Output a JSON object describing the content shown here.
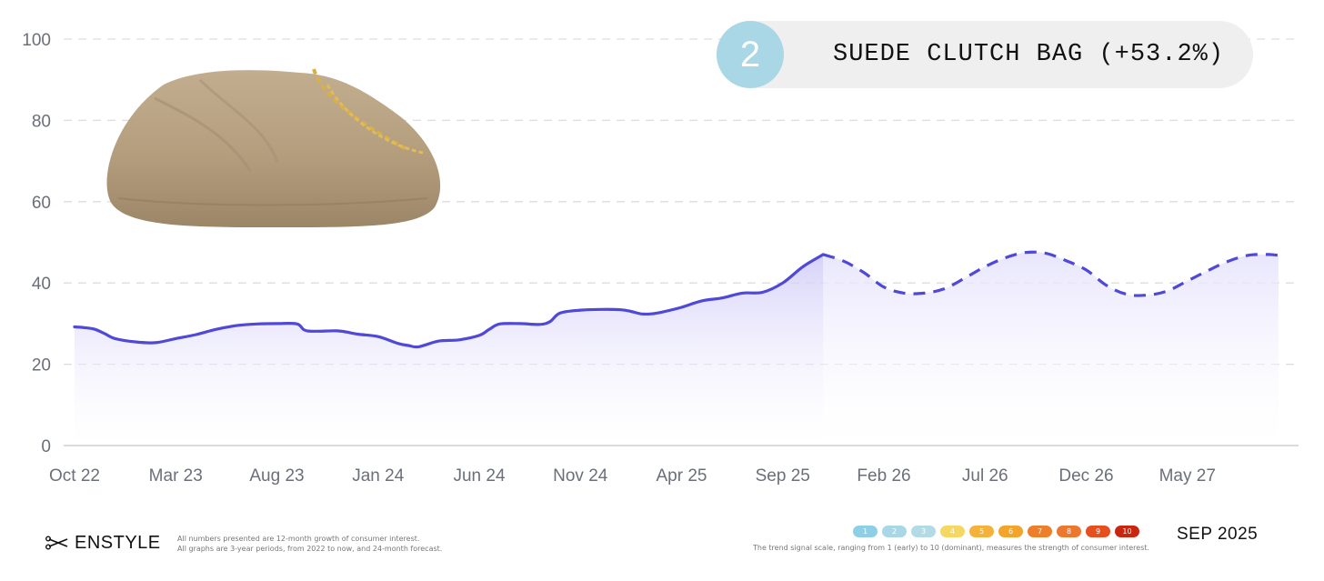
{
  "badge": {
    "rank": "2",
    "title": "SUEDE CLUTCH BAG (+53.2%)"
  },
  "brand": {
    "name": "ENSTYLE",
    "icon": "scissors-icon"
  },
  "footnote": {
    "line1": "All numbers presented are 12-month growth of consumer interest.",
    "line2": "All graphs are 3-year periods, from 2022 to now, and 24-month forecast."
  },
  "scale": {
    "levels": [
      "1",
      "2",
      "3",
      "4",
      "5",
      "6",
      "7",
      "8",
      "9",
      "10"
    ],
    "colors": [
      "#8fcfe6",
      "#a9d7e6",
      "#b3dbe6",
      "#f5d764",
      "#f4b23a",
      "#f2a52a",
      "#ee7f2a",
      "#ec7830",
      "#e6501e",
      "#c8260e"
    ],
    "note": "The trend signal scale, ranging from 1 (early) to 10 (dominant), measures the strength of consumer interest."
  },
  "date_stamp": "SEP 2025",
  "image": {
    "subject": "beige suede pouch clutch with gold chain",
    "icon": "clutch-bag-photo"
  },
  "chart_data": {
    "type": "area",
    "title": "",
    "xlabel": "",
    "ylabel": "",
    "ylim": [
      0,
      100
    ],
    "yticks": [
      0,
      20,
      40,
      60,
      80,
      100
    ],
    "x_tick_labels": [
      "Oct 22",
      "Mar 23",
      "Aug 23",
      "Jan 24",
      "Jun 24",
      "Nov 24",
      "Apr 25",
      "Sep 25",
      "Feb 26",
      "Jul 26",
      "Dec 26",
      "May 27"
    ],
    "x_range_months": [
      0,
      60
    ],
    "grid": "horizontal-dashed",
    "colors": {
      "line": "#4f48d8",
      "fill": "#d8d4fb",
      "grid": "#dddddd"
    },
    "series": [
      {
        "segment": "actual",
        "style": "solid",
        "points": [
          [
            0,
            29.2
          ],
          [
            0.5,
            29.0
          ],
          [
            1,
            28.6
          ],
          [
            1.5,
            27.5
          ],
          [
            2,
            26.3
          ],
          [
            3,
            25.5
          ],
          [
            4,
            25.3
          ],
          [
            5,
            26.3
          ],
          [
            6,
            27.3
          ],
          [
            7,
            28.6
          ],
          [
            8,
            29.5
          ],
          [
            9,
            29.9
          ],
          [
            10,
            30.0
          ],
          [
            11,
            29.9
          ],
          [
            11.5,
            28.2
          ],
          [
            13,
            28.2
          ],
          [
            14,
            27.4
          ],
          [
            15,
            26.8
          ],
          [
            16,
            25.1
          ],
          [
            16.5,
            24.6
          ],
          [
            17,
            24.3
          ],
          [
            18,
            25.7
          ],
          [
            19,
            26.0
          ],
          [
            20,
            27.1
          ],
          [
            20.5,
            28.6
          ],
          [
            21,
            29.9
          ],
          [
            22,
            30.0
          ],
          [
            23,
            29.8
          ],
          [
            23.5,
            30.5
          ],
          [
            24,
            32.6
          ],
          [
            25,
            33.3
          ],
          [
            26,
            33.5
          ],
          [
            27,
            33.4
          ],
          [
            27.5,
            33.0
          ],
          [
            28,
            32.4
          ],
          [
            28.5,
            32.4
          ],
          [
            29,
            32.8
          ],
          [
            30,
            34.0
          ],
          [
            31,
            35.6
          ],
          [
            32,
            36.3
          ],
          [
            33,
            37.5
          ],
          [
            34,
            37.7
          ],
          [
            35,
            40.0
          ],
          [
            36,
            44.0
          ],
          [
            37,
            47.0
          ]
        ]
      },
      {
        "segment": "forecast",
        "style": "dashed",
        "points": [
          [
            37,
            47.0
          ],
          [
            38,
            45.4
          ],
          [
            39,
            42.6
          ],
          [
            40,
            39.0
          ],
          [
            41,
            37.5
          ],
          [
            42,
            37.5
          ],
          [
            43,
            38.6
          ],
          [
            44,
            41.2
          ],
          [
            45,
            44.0
          ],
          [
            46,
            46.2
          ],
          [
            47,
            47.5
          ],
          [
            48,
            47.3
          ],
          [
            49,
            45.5
          ],
          [
            50,
            43.2
          ],
          [
            51,
            39.4
          ],
          [
            52,
            37.2
          ],
          [
            53,
            37.0
          ],
          [
            54,
            38.0
          ],
          [
            55,
            40.5
          ],
          [
            56,
            43.0
          ],
          [
            57,
            45.3
          ],
          [
            58,
            46.8
          ],
          [
            59,
            47.0
          ],
          [
            59.5,
            46.8
          ]
        ]
      }
    ]
  }
}
